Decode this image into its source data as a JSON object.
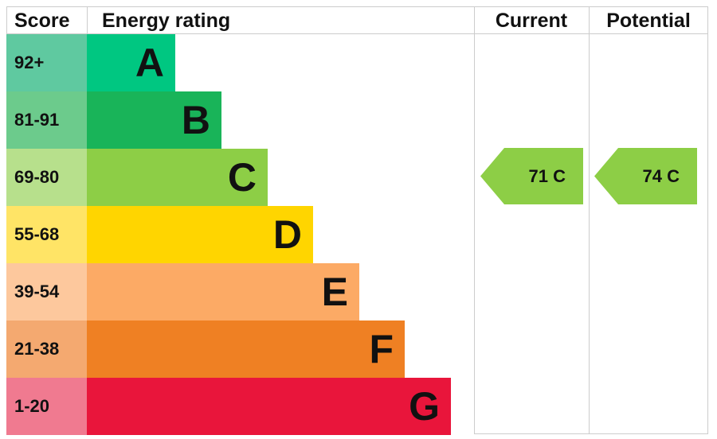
{
  "chart_data": {
    "type": "bar",
    "headers": {
      "score": "Score",
      "rating": "Energy rating",
      "current": "Current",
      "potential": "Potential"
    },
    "bands": [
      {
        "letter": "A",
        "range": "92+",
        "color": "#00c781",
        "score_color": "#5fc9a0"
      },
      {
        "letter": "B",
        "range": "81-91",
        "color": "#19b459",
        "score_color": "#6ccb8c"
      },
      {
        "letter": "C",
        "range": "69-80",
        "color": "#8dce46",
        "score_color": "#b7e08c"
      },
      {
        "letter": "D",
        "range": "55-68",
        "color": "#ffd500",
        "score_color": "#ffe466"
      },
      {
        "letter": "E",
        "range": "39-54",
        "color": "#fcaa65",
        "score_color": "#fdc89d"
      },
      {
        "letter": "F",
        "range": "21-38",
        "color": "#ef8023",
        "score_color": "#f4a970"
      },
      {
        "letter": "G",
        "range": "1-20",
        "color": "#e9153b",
        "score_color": "#f07a90"
      }
    ],
    "current": {
      "value": 71,
      "band": "C",
      "label": "71  C",
      "color": "#8dce46"
    },
    "potential": {
      "value": 74,
      "band": "C",
      "label": "74  C",
      "color": "#8dce46"
    }
  }
}
